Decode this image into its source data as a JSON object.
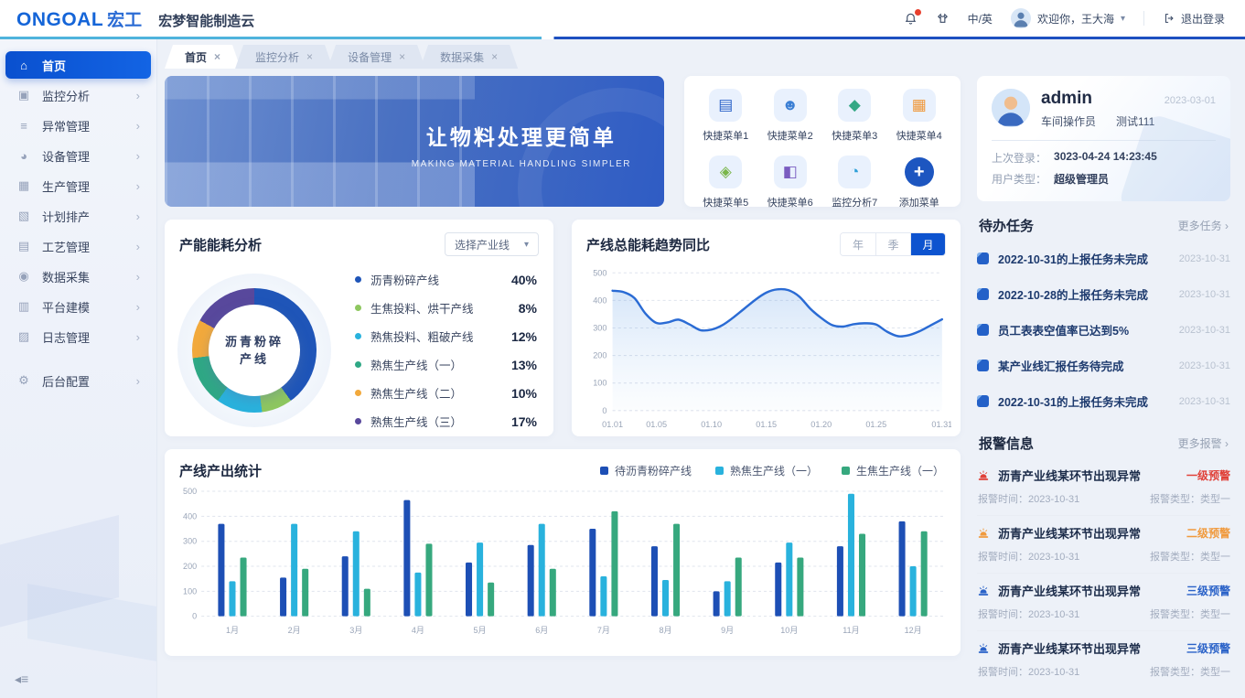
{
  "header": {
    "logo_primary": "ONGOAL",
    "logo_cn": "宏工",
    "product_name": "宏梦智能制造云",
    "lang_toggle": "中/英",
    "welcome": "欢迎你，王大海",
    "logout": "退出登录"
  },
  "sidebar": {
    "items": [
      {
        "key": "home",
        "label": "首页",
        "icon": "home-icon",
        "active": true,
        "has_children": false
      },
      {
        "key": "monitor",
        "label": "监控分析",
        "icon": "monitor-icon",
        "has_children": true
      },
      {
        "key": "exception",
        "label": "异常管理",
        "icon": "exception-icon",
        "has_children": true
      },
      {
        "key": "device",
        "label": "设备管理",
        "icon": "device-icon",
        "has_children": true
      },
      {
        "key": "production",
        "label": "生产管理",
        "icon": "production-icon",
        "has_children": true
      },
      {
        "key": "plan",
        "label": "计划排产",
        "icon": "plan-icon",
        "has_children": true
      },
      {
        "key": "process",
        "label": "工艺管理",
        "icon": "process-icon",
        "has_children": true
      },
      {
        "key": "data",
        "label": "数据采集",
        "icon": "data-icon",
        "has_children": true
      },
      {
        "key": "platform",
        "label": "平台建模",
        "icon": "platform-icon",
        "has_children": true
      },
      {
        "key": "log",
        "label": "日志管理",
        "icon": "log-icon",
        "has_children": true
      },
      {
        "key": "config",
        "label": "后台配置",
        "icon": "config-icon",
        "has_children": true,
        "section_break": true
      }
    ]
  },
  "tabs": [
    {
      "key": "home",
      "label": "首页",
      "active": true
    },
    {
      "key": "monitor",
      "label": "监控分析",
      "active": false
    },
    {
      "key": "device",
      "label": "设备管理",
      "active": false
    },
    {
      "key": "data",
      "label": "数据采集",
      "active": false
    }
  ],
  "banner": {
    "title": "让物料处理更简单",
    "subtitle": "MAKING MATERIAL HANDLING SIMPLER"
  },
  "quick_menu": [
    {
      "label": "快捷菜单1",
      "icon": "doc-icon",
      "color": "#2a62c8"
    },
    {
      "label": "快捷菜单2",
      "icon": "worker-icon",
      "color": "#3b7fd4"
    },
    {
      "label": "快捷菜单3",
      "icon": "flow-icon",
      "color": "#34a885"
    },
    {
      "label": "快捷菜单4",
      "icon": "report-icon",
      "color": "#f0983a"
    },
    {
      "label": "快捷菜单5",
      "icon": "recycle-icon",
      "color": "#7ab64a"
    },
    {
      "label": "快捷菜单6",
      "icon": "chart-icon",
      "color": "#7a5cc0"
    },
    {
      "label": "监控分析7",
      "icon": "monitor-pie-icon",
      "color": "#2d9fd8"
    },
    {
      "label": "添加菜单",
      "icon": "plus-icon",
      "color": "#1d56c0",
      "is_add": true
    }
  ],
  "chart_data": [
    {
      "id": "energy_donut",
      "type": "pie",
      "title": "产能能耗分析",
      "filter_label": "选择产业线",
      "center_label_line1": "沥青粉碎",
      "center_label_line2": "产线",
      "segments": [
        {
          "label": "沥青粉碎产线",
          "value": 40,
          "color": "#1f55b8"
        },
        {
          "label": "生焦投料、烘干产线",
          "value": 8,
          "color": "#8ec75f"
        },
        {
          "label": "熟焦投料、粗破产线",
          "value": 12,
          "color": "#29b2dd"
        },
        {
          "label": "熟焦生产线（一）",
          "value": 13,
          "color": "#2fa885"
        },
        {
          "label": "熟焦生产线（二）",
          "value": 10,
          "color": "#f2a93c"
        },
        {
          "label": "熟焦生产线（三）",
          "value": 17,
          "color": "#58489c"
        }
      ]
    },
    {
      "id": "energy_trend",
      "type": "area",
      "title": "产线总能耗趋势同比",
      "toggles": [
        "年",
        "季",
        "月"
      ],
      "active_toggle": "月",
      "x_tick_days": [
        1,
        5,
        10,
        15,
        20,
        25,
        31
      ],
      "x_tick_labels": [
        "01.01",
        "01.05",
        "01.10",
        "01.15",
        "01.20",
        "01.25",
        "01.31"
      ],
      "y_ticks": [
        0,
        100,
        200,
        300,
        400,
        500
      ],
      "ylim": [
        0,
        500
      ],
      "line_color": "#2a6bd4",
      "values": [
        435,
        430,
        408,
        352,
        318,
        320,
        330,
        313,
        292,
        294,
        310,
        338,
        370,
        402,
        428,
        440,
        437,
        414,
        370,
        336,
        310,
        305,
        314,
        317,
        312,
        286,
        270,
        274,
        289,
        310,
        331
      ]
    },
    {
      "id": "output_stats",
      "type": "bar",
      "title": "产线产出统计",
      "categories": [
        "1月",
        "2月",
        "3月",
        "4月",
        "5月",
        "6月",
        "7月",
        "8月",
        "9月",
        "10月",
        "11月",
        "12月"
      ],
      "y_ticks": [
        0,
        100,
        200,
        300,
        400,
        500
      ],
      "ylim": [
        0,
        500
      ],
      "series": [
        {
          "name": "待沥青粉碎产线",
          "color": "#1d4fb5",
          "values": [
            370,
            155,
            240,
            465,
            215,
            285,
            350,
            280,
            100,
            215,
            280,
            380
          ]
        },
        {
          "name": "熟焦生产线（一）",
          "color": "#29b2dd",
          "values": [
            140,
            370,
            340,
            175,
            295,
            370,
            160,
            145,
            140,
            295,
            490,
            200
          ]
        },
        {
          "name": "生焦生产线（一）",
          "color": "#36a87e",
          "values": [
            235,
            190,
            110,
            290,
            135,
            190,
            420,
            370,
            235,
            235,
            330,
            340
          ]
        }
      ]
    }
  ],
  "user_card": {
    "name": "admin",
    "date": "2023-03-01",
    "role": "车间操作员",
    "tag": "测试111",
    "last_login_label": "上次登录：",
    "last_login": "3023-04-24  14:23:45",
    "user_type_label": "用户类型：",
    "user_type": "超级管理员"
  },
  "todo": {
    "title": "待办任务",
    "more": "更多任务 ›",
    "items": [
      {
        "text": "2022-10-31的上报任务未完成",
        "date": "2023-10-31"
      },
      {
        "text": "2022-10-28的上报任务未完成",
        "date": "2023-10-31"
      },
      {
        "text": "员工表表空值率已达到5%",
        "date": "2023-10-31"
      },
      {
        "text": "某产业线汇报任务待完成",
        "date": "2023-10-31"
      },
      {
        "text": "2022-10-31的上报任务未完成",
        "date": "2023-10-31"
      }
    ]
  },
  "alarms": {
    "title": "报警信息",
    "more": "更多报警 ›",
    "time_label": "报警时间：",
    "type_label": "报警类型：",
    "items": [
      {
        "title": "沥青产业线某环节出现异常",
        "level": "一级预警",
        "color": "#e04038",
        "time": "2023-10-31",
        "type": "类型一"
      },
      {
        "title": "沥青产业线某环节出现异常",
        "level": "二级预警",
        "color": "#f09a3e",
        "time": "2023-10-31",
        "type": "类型一"
      },
      {
        "title": "沥青产业线某环节出现异常",
        "level": "三级预警",
        "color": "#2a62c8",
        "time": "2023-10-31",
        "type": "类型一"
      },
      {
        "title": "沥青产业线某环节出现异常",
        "level": "三级预警",
        "color": "#2a62c8",
        "time": "2023-10-31",
        "type": "类型一"
      }
    ]
  }
}
